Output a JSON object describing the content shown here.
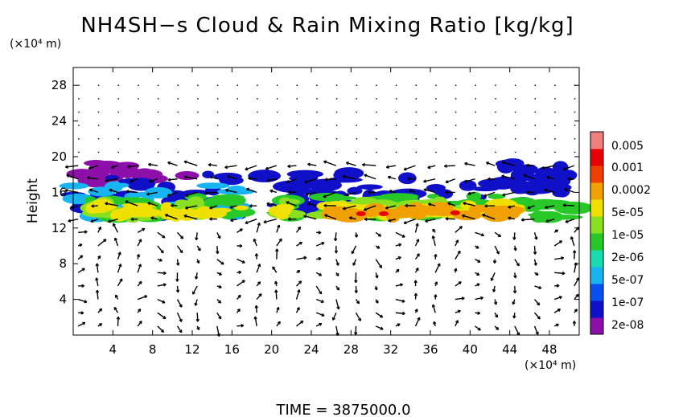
{
  "chart_data": {
    "type": "heatmap",
    "title": "NH4SH−s Cloud & Rain Mixing Ratio [kg/kg]",
    "ylabel": "Height",
    "y_unit": "(×10⁴ m)",
    "x_unit": "(×10⁴ m)",
    "xlim": [
      0,
      51
    ],
    "ylim": [
      0,
      30
    ],
    "x_ticks": [
      4,
      8,
      12,
      16,
      20,
      24,
      28,
      32,
      36,
      40,
      44,
      48
    ],
    "x_tick_labels": [
      "4",
      "8",
      "12",
      "16",
      "20",
      "24",
      "28",
      "32",
      "36",
      "40",
      "44",
      "48"
    ],
    "y_ticks": [
      4,
      8,
      12,
      16,
      20,
      24,
      28
    ],
    "y_tick_labels": [
      "4",
      "8",
      "12",
      "16",
      "20",
      "24",
      "28"
    ],
    "colorbar": {
      "labels": [
        "2e-08",
        "1e-07",
        "5e-07",
        "2e-06",
        "1e-05",
        "5e-05",
        "0.0002",
        "0.001",
        "0.005"
      ],
      "colors": [
        "#8b0fa8",
        "#1010c8",
        "#0a50f0",
        "#16b4f0",
        "#18dcb0",
        "#28c828",
        "#88e020",
        "#f0e000",
        "#f0a000",
        "#f04000",
        "#e80000",
        "#f08080"
      ]
    },
    "cloud_layer": {
      "bottom": 12.8,
      "top": 19.5,
      "peak_concentration_level": 14
    },
    "annotation": "Wind vectors overlaid",
    "footer": "TIME  =  3875000.0"
  }
}
